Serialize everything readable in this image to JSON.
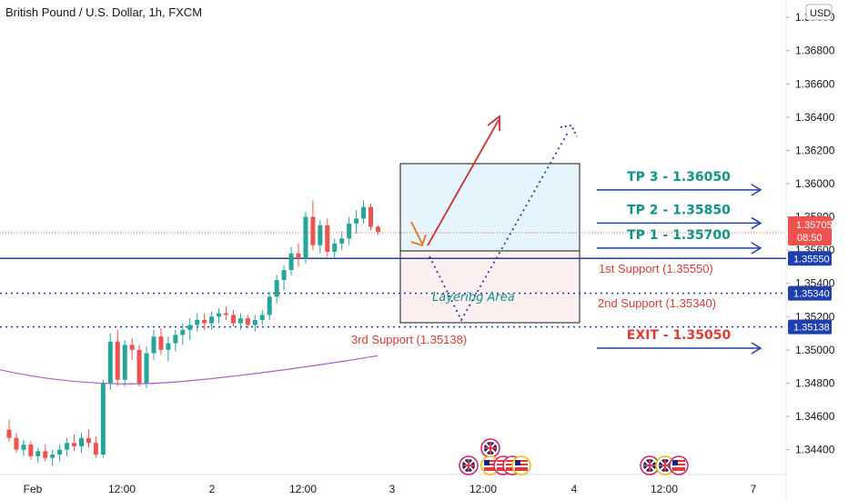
{
  "title": "British Pound / U.S. Dollar, 1h, FXCM",
  "currency": "USD",
  "colors": {
    "up": "#26a69a",
    "down": "#ef5350",
    "support_line": "#1e40af",
    "ma": "#b05bc7",
    "accent_teal": "#0f9488",
    "accent_red": "#e53935",
    "current_price": "#ef5350"
  },
  "chart_data": {
    "type": "candlestick",
    "y_axis": {
      "ylim": [
        1.3425,
        1.3705
      ],
      "ticks": [
        "1.34400",
        "1.34600",
        "1.34800",
        "1.35000",
        "1.35200",
        "1.35400",
        "1.35600",
        "1.35800",
        "1.36000",
        "1.36200",
        "1.36400",
        "1.36600",
        "1.36800",
        "1.37000"
      ]
    },
    "x_axis": {
      "labels": [
        "Feb",
        "12:00",
        "2",
        "12:00",
        "3",
        "12:00",
        "4",
        "12:00",
        "7"
      ]
    },
    "candles": [
      [
        1.3452,
        1.3458,
        1.3445,
        1.3447
      ],
      [
        1.3447,
        1.345,
        1.3438,
        1.344
      ],
      [
        1.344,
        1.3446,
        1.3436,
        1.3443
      ],
      [
        1.3443,
        1.3445,
        1.3434,
        1.3436
      ],
      [
        1.3436,
        1.3441,
        1.3432,
        1.3439
      ],
      [
        1.3439,
        1.3443,
        1.3433,
        1.3435
      ],
      [
        1.3435,
        1.344,
        1.343,
        1.3437
      ],
      [
        1.3437,
        1.3443,
        1.3433,
        1.344
      ],
      [
        1.344,
        1.3447,
        1.3436,
        1.3444
      ],
      [
        1.3444,
        1.3449,
        1.3439,
        1.3442
      ],
      [
        1.3442,
        1.345,
        1.3438,
        1.3447
      ],
      [
        1.3447,
        1.3452,
        1.3441,
        1.3444
      ],
      [
        1.3444,
        1.3448,
        1.3435,
        1.3437
      ],
      [
        1.3437,
        1.3482,
        1.3435,
        1.348
      ],
      [
        1.348,
        1.351,
        1.3476,
        1.3505
      ],
      [
        1.3505,
        1.3512,
        1.3478,
        1.3482
      ],
      [
        1.3482,
        1.3506,
        1.3478,
        1.3503
      ],
      [
        1.3503,
        1.3507,
        1.3494,
        1.35
      ],
      [
        1.35,
        1.3503,
        1.3478,
        1.348
      ],
      [
        1.348,
        1.3502,
        1.3477,
        1.3498
      ],
      [
        1.3498,
        1.3512,
        1.3494,
        1.3508
      ],
      [
        1.3508,
        1.3513,
        1.3497,
        1.35
      ],
      [
        1.35,
        1.3508,
        1.3493,
        1.3504
      ],
      [
        1.3504,
        1.3512,
        1.3499,
        1.3509
      ],
      [
        1.3509,
        1.3516,
        1.3503,
        1.3512
      ],
      [
        1.3512,
        1.3519,
        1.3506,
        1.3515
      ],
      [
        1.3515,
        1.3522,
        1.3511,
        1.3518
      ],
      [
        1.3518,
        1.3522,
        1.3512,
        1.3516
      ],
      [
        1.3516,
        1.3523,
        1.3512,
        1.352
      ],
      [
        1.352,
        1.3525,
        1.3516,
        1.3522
      ],
      [
        1.3522,
        1.3526,
        1.3518,
        1.3521
      ],
      [
        1.3521,
        1.3524,
        1.3514,
        1.3516
      ],
      [
        1.3516,
        1.3522,
        1.3512,
        1.3519
      ],
      [
        1.3519,
        1.3521,
        1.3513,
        1.3515
      ],
      [
        1.3515,
        1.3521,
        1.3511,
        1.3518
      ],
      [
        1.3518,
        1.3524,
        1.3515,
        1.3521
      ],
      [
        1.3521,
        1.3535,
        1.3518,
        1.3532
      ],
      [
        1.3532,
        1.3545,
        1.3528,
        1.3542
      ],
      [
        1.3542,
        1.3551,
        1.3536,
        1.3548
      ],
      [
        1.3548,
        1.3562,
        1.3545,
        1.3558
      ],
      [
        1.3558,
        1.3564,
        1.355,
        1.3555
      ],
      [
        1.3555,
        1.3583,
        1.3552,
        1.358
      ],
      [
        1.358,
        1.359,
        1.356,
        1.3563
      ],
      [
        1.3563,
        1.3578,
        1.3558,
        1.3575
      ],
      [
        1.3575,
        1.3579,
        1.3556,
        1.3559
      ],
      [
        1.3559,
        1.3567,
        1.3555,
        1.3564
      ],
      [
        1.3564,
        1.3571,
        1.356,
        1.3567
      ],
      [
        1.3567,
        1.358,
        1.3563,
        1.3576
      ],
      [
        1.3576,
        1.3584,
        1.357,
        1.3579
      ],
      [
        1.3579,
        1.359,
        1.3576,
        1.3586
      ],
      [
        1.3586,
        1.3588,
        1.3572,
        1.3574
      ],
      [
        1.3574,
        1.3575,
        1.3569,
        1.3571
      ]
    ],
    "ma_line": [
      [
        1.348,
        1.3478
      ],
      [
        1.3482,
        1.3483
      ],
      [
        1.3486,
        1.3489
      ],
      [
        1.3491,
        1.3494
      ],
      [
        1.3496,
        1.3499
      ]
    ],
    "current_price": "1.35705",
    "countdown": "08:50",
    "levels": [
      {
        "name": "TP 3",
        "price": 1.3605,
        "text": "TP 3 - 1.36050",
        "style": "arrow"
      },
      {
        "name": "TP 2",
        "price": 1.3585,
        "text": "TP 2 - 1.35850",
        "style": "arrow"
      },
      {
        "name": "TP 1",
        "price": 1.357,
        "text": "TP 1 - 1.35700",
        "style": "arrow"
      },
      {
        "name": "1st Support",
        "price": 1.3555,
        "text": "1st Support (1.35550)",
        "tag": "1.35550",
        "style": "solid"
      },
      {
        "name": "2nd Support",
        "price": 1.3534,
        "text": "2nd Support (1.35340)",
        "tag": "1.35340",
        "style": "dotted"
      },
      {
        "name": "3rd Support",
        "price": 1.35138,
        "text": "3rd Support (1.35138)",
        "tag": "1.35138",
        "style": "dotted"
      },
      {
        "name": "EXIT",
        "price": 1.3505,
        "text": "EXIT - 1.35050",
        "style": "arrow"
      }
    ],
    "annotations": {
      "layering_area": "Layering Area"
    }
  }
}
